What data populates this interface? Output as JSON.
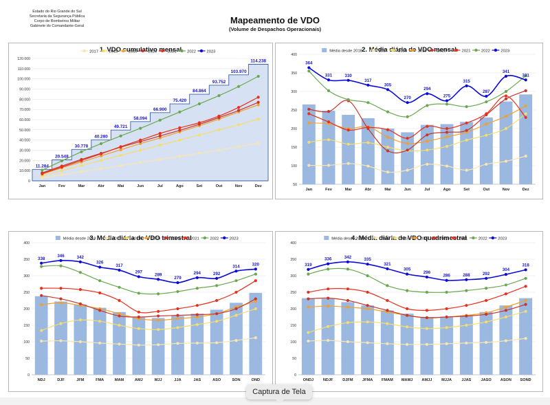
{
  "header": {
    "org_lines": [
      "Estado do Rio Grande do Sul",
      "Secretaria da Segurança Pública",
      "Corpo de Bombeiros Militar",
      "Gabinete do Comandante-Geral"
    ],
    "title": "Mapeamento de VDO",
    "subtitle": "(Volume de Despachos Operacionais)"
  },
  "tooltip": {
    "label": "Captura de Tela"
  },
  "colors": {
    "2017": "#fae5b0",
    "2018": "#f5dd6e",
    "2019": "#f0a030",
    "2020": "#c8352a",
    "2021": "#e8301c",
    "2022": "#6aa84f",
    "2023": "#0a0ad8",
    "media": "#9ab8e0",
    "avg": "#d8d8d8",
    "bar": "#c3d4ee",
    "cum_fill": "#d6e2f3"
  },
  "chart_data": [
    {
      "type": "area",
      "title": "1. VDO cumulativo mensal",
      "categories": [
        "Jan",
        "Fev",
        "Mar",
        "Abr",
        "Mai",
        "Jun",
        "Jul",
        "Ago",
        "Set",
        "Out",
        "Nov",
        "Dez"
      ],
      "ylim": [
        0,
        120000
      ],
      "yticks": [
        "0",
        "10.000",
        "20.000",
        "30.000",
        "40.000",
        "50.000",
        "60.000",
        "70.000",
        "80.000",
        "90.000",
        "100.000",
        "110.000",
        "120.000"
      ],
      "legend": [
        "2017",
        "2018",
        "2019",
        "2020",
        "2021",
        "2022",
        "2023"
      ],
      "step_values": [
        11284,
        20548,
        30778,
        40280,
        49721,
        58094,
        66900,
        75420,
        84864,
        93752,
        103970,
        114238
      ],
      "step_labels": [
        "11.284",
        "20.548",
        "30.778",
        "40.280",
        "49.721",
        "58.094",
        "66.900",
        "75.420",
        "84.864",
        "93.752",
        "103.970",
        "114.238"
      ],
      "series": [
        {
          "name": "2017",
          "values": [
            3000,
            6000,
            9000,
            12000,
            15000,
            18000,
            21000,
            24000,
            27000,
            30000,
            33500,
            37000
          ]
        },
        {
          "name": "2018",
          "values": [
            5000,
            10000,
            15000,
            20000,
            25000,
            30000,
            35000,
            40000,
            45000,
            50000,
            55000,
            60500
          ]
        },
        {
          "name": "2019",
          "values": [
            6500,
            12800,
            18500,
            24500,
            30500,
            36500,
            42000,
            48000,
            54000,
            60500,
            67500,
            74500
          ]
        },
        {
          "name": "2020",
          "values": [
            7800,
            14500,
            21000,
            27000,
            33000,
            38500,
            44000,
            49500,
            55500,
            62000,
            69000,
            77000
          ]
        },
        {
          "name": "2021",
          "values": [
            7000,
            13500,
            20000,
            26500,
            33500,
            40000,
            46500,
            52000,
            57000,
            63500,
            72000,
            82000
          ]
        },
        {
          "name": "2022",
          "values": [
            10500,
            19500,
            28500,
            36500,
            44000,
            51500,
            59500,
            67500,
            75500,
            83500,
            92500,
            102500
          ]
        }
      ]
    },
    {
      "type": "bar",
      "title": "2. Média diária de VDO mensal",
      "categories": [
        "Jan",
        "Fev",
        "Mar",
        "Abr",
        "Mai",
        "Jun",
        "Jul",
        "Ago",
        "Set",
        "Out",
        "Nov",
        "Dez"
      ],
      "ylim": [
        50,
        400
      ],
      "yticks": [
        "50",
        "100",
        "150",
        "200",
        "250",
        "300",
        "350",
        "400"
      ],
      "legend": [
        "Média desde 2018",
        "2017",
        "2018",
        "2019",
        "2020 *",
        "2021",
        "2022",
        "2023"
      ],
      "bars": [
        265,
        248,
        237,
        228,
        200,
        190,
        210,
        212,
        218,
        230,
        273,
        292
      ],
      "series": [
        {
          "name": "2017",
          "values": [
            101,
            101,
            106,
            99,
            83,
            88,
            104,
            99,
            88,
            104,
            112,
            126
          ]
        },
        {
          "name": "2018",
          "values": [
            163,
            170,
            158,
            162,
            150,
            140,
            142,
            152,
            169,
            182,
            200,
            240
          ]
        },
        {
          "name": "2019",
          "values": [
            215,
            213,
            200,
            205,
            177,
            160,
            166,
            178,
            190,
            212,
            233,
            261
          ]
        },
        {
          "name": "2020 *",
          "values": [
            252,
            246,
            275,
            200,
            140,
            142,
            183,
            190,
            195,
            237,
            280,
            302
          ]
        },
        {
          "name": "2021",
          "values": [
            240,
            218,
            196,
            203,
            197,
            174,
            206,
            200,
            215,
            240,
            288,
            230
          ]
        },
        {
          "name": "2022",
          "values": [
            355,
            302,
            278,
            270,
            245,
            232,
            262,
            266,
            259,
            272,
            300,
            342
          ]
        },
        {
          "name": "2023",
          "values": [
            364,
            331,
            330,
            317,
            305,
            270,
            294,
            275,
            315,
            287,
            341,
            331
          ]
        }
      ],
      "labels_2023": [
        "364",
        "331",
        "330",
        "317",
        "305",
        "270",
        "294",
        "275",
        "315",
        "287",
        "341",
        "331"
      ]
    },
    {
      "type": "bar",
      "title": "3. Média diária de VDO trimestral",
      "categories": [
        "NDJ",
        "DJF",
        "JFM",
        "FMA",
        "MAM",
        "AMJ",
        "MJJ",
        "JJA",
        "JAS",
        "ASO",
        "SON",
        "OND"
      ],
      "ylim": [
        0,
        400
      ],
      "yticks": [
        "0",
        "50",
        "100",
        "150",
        "200",
        "250",
        "300",
        "350",
        "400"
      ],
      "legend": [
        "Média desde 2018",
        "2017",
        "2018",
        "2019",
        "2020",
        "2021",
        "2022",
        "2023"
      ],
      "bars": [
        238,
        222,
        213,
        203,
        190,
        176,
        172,
        178,
        185,
        197,
        218,
        248
      ],
      "series": [
        {
          "name": "2017",
          "values": [
            102,
            103,
            100,
            96,
            93,
            90,
            91,
            95,
            96,
            97,
            104,
            112
          ]
        },
        {
          "name": "2018",
          "values": [
            134,
            155,
            166,
            162,
            150,
            140,
            137,
            143,
            152,
            162,
            180,
            200
          ]
        },
        {
          "name": "2019",
          "values": [
            212,
            218,
            210,
            200,
            185,
            170,
            165,
            170,
            175,
            185,
            205,
            222
          ]
        },
        {
          "name": "2020",
          "values": [
            240,
            230,
            215,
            195,
            178,
            175,
            178,
            180,
            182,
            185,
            200,
            230
          ]
        },
        {
          "name": "2021",
          "values": [
            262,
            262,
            258,
            248,
            225,
            190,
            192,
            200,
            210,
            225,
            250,
            285
          ]
        },
        {
          "name": "2022",
          "values": [
            328,
            330,
            310,
            285,
            265,
            247,
            245,
            252,
            262,
            270,
            285,
            305
          ]
        },
        {
          "name": "2023",
          "values": [
            338,
            346,
            342,
            326,
            317,
            297,
            289,
            279,
            294,
            292,
            314,
            320
          ]
        }
      ],
      "labels_2023": [
        "338",
        "346",
        "342",
        "326",
        "317",
        "297",
        "289",
        "279",
        "294",
        "292",
        "314",
        "320"
      ]
    },
    {
      "type": "bar",
      "title": "4. Média diária de VDO quadrimestral",
      "categories": [
        "ONDJ",
        "NDJF",
        "DJFM",
        "JFMA",
        "FMAM",
        "MAMJ",
        "AMJJ",
        "MJJA",
        "JJAS",
        "JASO",
        "ASON",
        "SOND"
      ],
      "ylim": [
        0,
        400
      ],
      "yticks": [
        "0",
        "50",
        "100",
        "150",
        "200",
        "250",
        "300",
        "350",
        "400"
      ],
      "legend": [
        "Média desde 2018",
        "2017",
        "2018",
        "2019",
        "2020",
        "2021",
        "2022",
        "2023"
      ],
      "bars": [
        232,
        230,
        220,
        210,
        195,
        185,
        175,
        176,
        180,
        190,
        210,
        232
      ],
      "series": [
        {
          "name": "2017",
          "values": [
            102,
            104,
            100,
            97,
            94,
            92,
            92,
            94,
            96,
            98,
            103,
            110
          ]
        },
        {
          "name": "2018",
          "values": [
            128,
            146,
            158,
            160,
            155,
            145,
            140,
            143,
            150,
            160,
            175,
            192
          ]
        },
        {
          "name": "2019",
          "values": [
            205,
            208,
            205,
            200,
            190,
            180,
            172,
            175,
            180,
            188,
            205,
            225
          ]
        },
        {
          "name": "2020",
          "values": [
            230,
            232,
            225,
            210,
            195,
            180,
            173,
            175,
            178,
            183,
            195,
            213
          ]
        },
        {
          "name": "2021",
          "values": [
            250,
            260,
            260,
            250,
            225,
            200,
            195,
            200,
            210,
            225,
            245,
            268
          ]
        },
        {
          "name": "2022",
          "values": [
            305,
            320,
            320,
            300,
            270,
            255,
            250,
            250,
            255,
            262,
            272,
            292
          ]
        },
        {
          "name": "2023",
          "values": [
            319,
            336,
            342,
            335,
            321,
            305,
            296,
            286,
            288,
            292,
            304,
            318
          ]
        }
      ],
      "labels_2023": [
        "319",
        "336",
        "342",
        "335",
        "321",
        "305",
        "296",
        "286",
        "288",
        "292",
        "304",
        "318"
      ]
    }
  ]
}
